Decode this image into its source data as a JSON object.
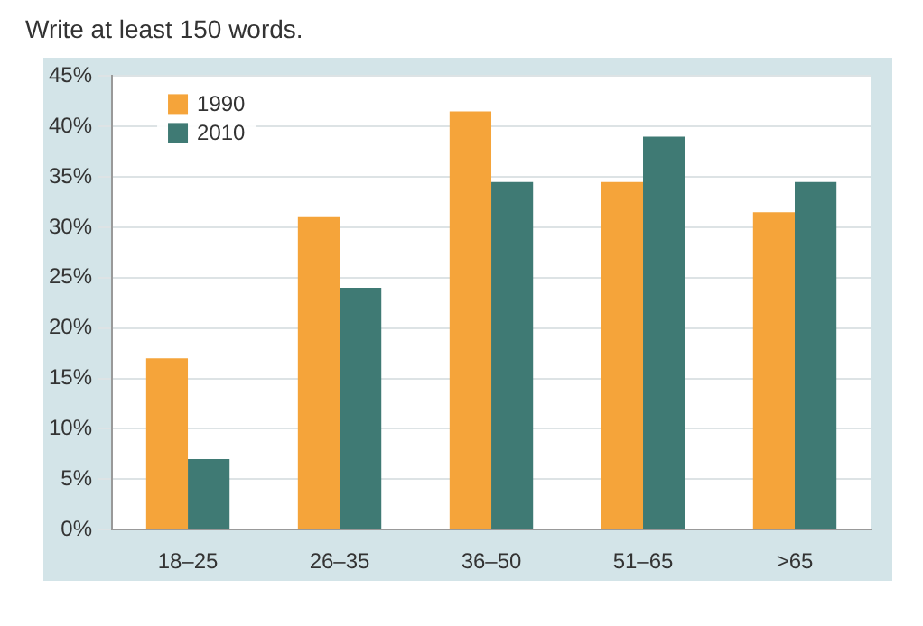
{
  "chart_data": {
    "type": "bar",
    "title": "Write at least 150 words.",
    "categories": [
      "18–25",
      "26–35",
      "36–50",
      "51–65",
      ">65"
    ],
    "series": [
      {
        "name": "1990",
        "color": "#f5a43a",
        "values": [
          17,
          31,
          41.5,
          34.5,
          31.5
        ]
      },
      {
        "name": "2010",
        "color": "#3f7a74",
        "values": [
          7,
          24,
          34.5,
          39,
          34.5
        ]
      }
    ],
    "ylim": [
      0,
      45
    ],
    "yticks": [
      {
        "value": 0,
        "label": "0%"
      },
      {
        "value": 5,
        "label": "5%"
      },
      {
        "value": 10,
        "label": "10%"
      },
      {
        "value": 15,
        "label": "15%"
      },
      {
        "value": 20,
        "label": "20%"
      },
      {
        "value": 25,
        "label": "25%"
      },
      {
        "value": 30,
        "label": "30%"
      },
      {
        "value": 35,
        "label": "35%"
      },
      {
        "value": 40,
        "label": "40%"
      },
      {
        "value": 45,
        "label": "45%"
      }
    ],
    "grid": "y",
    "legend": "top left"
  }
}
